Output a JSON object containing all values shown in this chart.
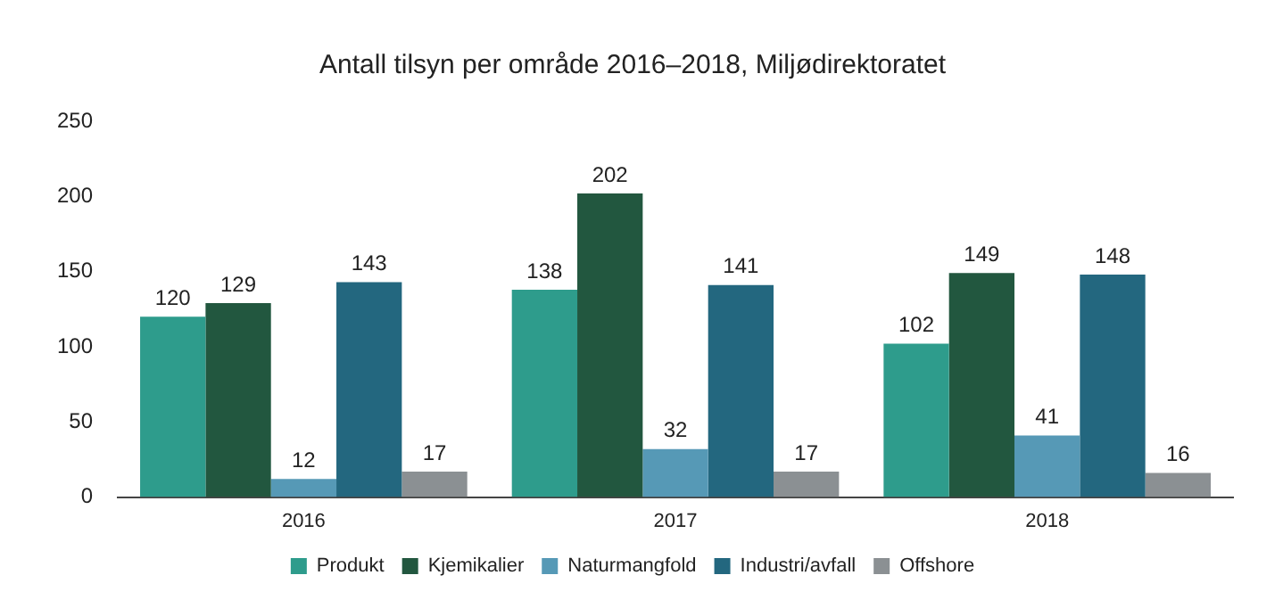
{
  "chart_data": {
    "type": "bar",
    "title": "Antall tilsyn per område 2016–2018, Miljødirektoratet",
    "categories": [
      "2016",
      "2017",
      "2018"
    ],
    "series": [
      {
        "name": "Produkt",
        "color": "#2e9c8c",
        "values": [
          120,
          138,
          102
        ]
      },
      {
        "name": "Kjemikalier",
        "color": "#22573f",
        "values": [
          129,
          202,
          149
        ]
      },
      {
        "name": "Naturmangfold",
        "color": "#5699b6",
        "values": [
          12,
          32,
          41
        ]
      },
      {
        "name": "Industri/avfall",
        "color": "#23677f",
        "values": [
          143,
          141,
          148
        ]
      },
      {
        "name": "Offshore",
        "color": "#8b9093",
        "values": [
          17,
          17,
          16
        ]
      }
    ],
    "ylim": [
      0,
      250
    ],
    "yticks": [
      0,
      50,
      100,
      150,
      200,
      250
    ],
    "grid": false,
    "legend": "bottom",
    "data_labels": true
  }
}
